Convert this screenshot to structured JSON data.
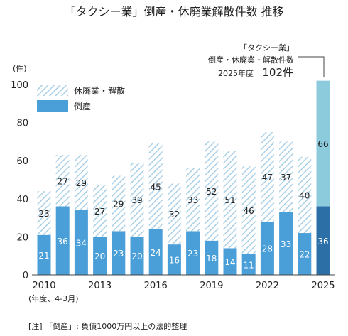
{
  "chart_data": {
    "type": "bar",
    "title": "「タクシー業」倒産・休廃業解散件数 推移",
    "y_unit": "(件)",
    "x_note": "(年度、4-3月)",
    "footnote": "[注] 「倒産」: 負債1000万円以上の法的整理",
    "ylim": [
      0,
      100
    ],
    "y_ticks": [
      "0",
      "20",
      "40",
      "60",
      "80",
      "100"
    ],
    "x_tick_labels": [
      "2010",
      "2013",
      "2016",
      "2019",
      "2022",
      "2025"
    ],
    "categories": [
      "2010",
      "2011",
      "2012",
      "2013",
      "2014",
      "2015",
      "2016",
      "2017",
      "2018",
      "2019",
      "2020",
      "2021",
      "2022",
      "2023",
      "2024",
      "2025"
    ],
    "series": [
      {
        "name": "倒産",
        "values": [
          21,
          36,
          34,
          20,
          23,
          20,
          24,
          16,
          23,
          18,
          14,
          11,
          28,
          33,
          22,
          36
        ]
      },
      {
        "name": "休廃業・解散",
        "values": [
          23,
          27,
          29,
          27,
          29,
          39,
          45,
          32,
          33,
          52,
          51,
          46,
          47,
          37,
          40,
          66
        ]
      }
    ],
    "legend": [
      "休廃業・解散",
      "倒産"
    ],
    "annotation": {
      "line1": "「タクシー業」",
      "line2": "倒産・休廃業・解散件数",
      "line3_label": "2025年度",
      "line3_value": "102件"
    },
    "colors": {
      "bankruptcy": "#4a9fd8",
      "closure_stripe": "#a9cfe6",
      "highlight_bankruptcy": "#2c6ea6",
      "highlight_closure": "#8ccbdc",
      "axis": "#444444"
    }
  }
}
